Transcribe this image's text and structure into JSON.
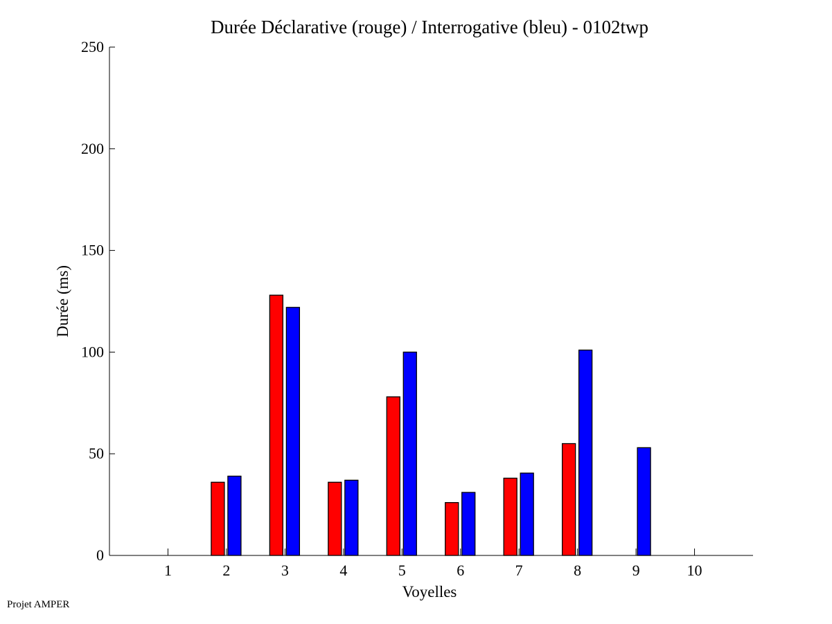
{
  "chart_data": {
    "type": "bar",
    "title": "Durée Déclarative (rouge) / Interrogative (bleu) - 0102twp",
    "xlabel": "Voyelles",
    "ylabel": "Durée (ms)",
    "categories": [
      "1",
      "2",
      "3",
      "4",
      "5",
      "6",
      "7",
      "8",
      "9",
      "10"
    ],
    "xlim": [
      0,
      11
    ],
    "ylim": [
      0,
      250
    ],
    "yticks": [
      0,
      50,
      100,
      150,
      200,
      250
    ],
    "grid": false,
    "series": [
      {
        "name": "Déclarative",
        "color": "#ff0000",
        "values": [
          0,
          36,
          128,
          36,
          78,
          26,
          38,
          55,
          0,
          0
        ]
      },
      {
        "name": "Interrogative",
        "color": "#0000ff",
        "values": [
          0,
          39,
          122,
          37,
          100,
          31,
          40.5,
          101,
          53,
          0
        ]
      }
    ]
  },
  "footer": "Projet AMPER"
}
